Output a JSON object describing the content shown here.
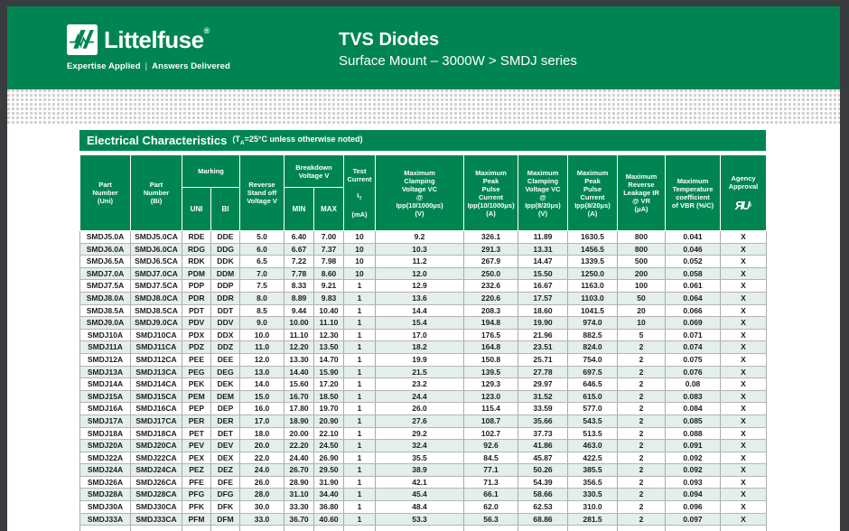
{
  "colors": {
    "accent_green": "#008552",
    "alt_row": "#e3efe8",
    "frame_bg": "#393c3f"
  },
  "brand": {
    "name": "Littelfuse",
    "reg": "®",
    "tagline_left": "Expertise Applied",
    "tagline_sep": "|",
    "tagline_right": "Answers Delivered"
  },
  "header": {
    "title": "TVS Diodes",
    "subtitle": "Surface Mount – 3000W  >  SMDJ series"
  },
  "section": {
    "title": "Electrical Characteristics",
    "note_prefix": "(T",
    "note_sub": "A",
    "note_suffix": "=25°C unless otherwise noted)"
  },
  "table": {
    "columns": {
      "part_uni": "Part\nNumber\n(Uni)",
      "part_bi": "Part\nNumber\n(Bi)",
      "marking": "Marking",
      "uni": "UNI",
      "bi": "BI",
      "reverse_standoff": "Reverse\nStand off\nVoltage V",
      "breakdown": "Breakdown\nVoltage V",
      "min": "MIN",
      "max": "MAX",
      "test_current": {
        "line1": "Test\nCurrent",
        "sym": "I",
        "sub": "T",
        "unit": "(mA)"
      },
      "clamping_10_1000": "Maximum\nClamping\nVoltage VC\n@\nIpp(10/1000μs)\n(V)",
      "peak_10_1000": "Maximum\nPeak\nPulse\nCurrent\nIpp(10/1000μs)\n(A)",
      "clamping_8_20": "Maximum\nClamping\nVoltage VC\n@\nIpp(8/20μs)\n(V)",
      "peak_8_20": "Maximum\nPeak\nPulse\nCurrent\nIpp(8/20μs)\n(A)",
      "reverse_leakage": "Maximum\nReverse\nLeakage IR\n@ VR\n(μA)",
      "temp_coeff": "Maximum\nTemperature\ncoefficient\nof VBR (%/C)",
      "agency": "Agency\nApproval",
      "agency_mark": "ЯU",
      "agency_mark_reg": "®"
    },
    "rows": [
      [
        "SMDJ5.0A",
        "SMDJ5.0CA",
        "RDE",
        "DDE",
        "5.0",
        "6.40",
        "7.00",
        "10",
        "9.2",
        "326.1",
        "11.89",
        "1630.5",
        "800",
        "0.041",
        "X"
      ],
      [
        "SMDJ6.0A",
        "SMDJ6.0CA",
        "RDG",
        "DDG",
        "6.0",
        "6.67",
        "7.37",
        "10",
        "10.3",
        "291.3",
        "13.31",
        "1456.5",
        "800",
        "0.046",
        "X"
      ],
      [
        "SMDJ6.5A",
        "SMDJ6.5CA",
        "RDK",
        "DDK",
        "6.5",
        "7.22",
        "7.98",
        "10",
        "11.2",
        "267.9",
        "14.47",
        "1339.5",
        "500",
        "0.052",
        "X"
      ],
      [
        "SMDJ7.0A",
        "SMDJ7.0CA",
        "PDM",
        "DDM",
        "7.0",
        "7.78",
        "8.60",
        "10",
        "12.0",
        "250.0",
        "15.50",
        "1250.0",
        "200",
        "0.058",
        "X"
      ],
      [
        "SMDJ7.5A",
        "SMDJ7.5CA",
        "PDP",
        "DDP",
        "7.5",
        "8.33",
        "9.21",
        "1",
        "12.9",
        "232.6",
        "16.67",
        "1163.0",
        "100",
        "0.061",
        "X"
      ],
      [
        "SMDJ8.0A",
        "SMDJ8.0CA",
        "PDR",
        "DDR",
        "8.0",
        "8.89",
        "9.83",
        "1",
        "13.6",
        "220.6",
        "17.57",
        "1103.0",
        "50",
        "0.064",
        "X"
      ],
      [
        "SMDJ8.5A",
        "SMDJ8.5CA",
        "PDT",
        "DDT",
        "8.5",
        "9.44",
        "10.40",
        "1",
        "14.4",
        "208.3",
        "18.60",
        "1041.5",
        "20",
        "0.066",
        "X"
      ],
      [
        "SMDJ9.0A",
        "SMDJ9.0CA",
        "PDV",
        "DDV",
        "9.0",
        "10.00",
        "11.10",
        "1",
        "15.4",
        "194.8",
        "19.90",
        "974.0",
        "10",
        "0.069",
        "X"
      ],
      [
        "SMDJ10A",
        "SMDJ10CA",
        "PDX",
        "DDX",
        "10.0",
        "11.10",
        "12.30",
        "1",
        "17.0",
        "176.5",
        "21.96",
        "882.5",
        "5",
        "0.071",
        "X"
      ],
      [
        "SMDJ11A",
        "SMDJ11CA",
        "PDZ",
        "DDZ",
        "11.0",
        "12.20",
        "13.50",
        "1",
        "18.2",
        "164.8",
        "23.51",
        "824.0",
        "2",
        "0.074",
        "X"
      ],
      [
        "SMDJ12A",
        "SMDJ12CA",
        "PEE",
        "DEE",
        "12.0",
        "13.30",
        "14.70",
        "1",
        "19.9",
        "150.8",
        "25.71",
        "754.0",
        "2",
        "0.075",
        "X"
      ],
      [
        "SMDJ13A",
        "SMDJ13CA",
        "PEG",
        "DEG",
        "13.0",
        "14.40",
        "15.90",
        "1",
        "21.5",
        "139.5",
        "27.78",
        "697.5",
        "2",
        "0.076",
        "X"
      ],
      [
        "SMDJ14A",
        "SMDJ14CA",
        "PEK",
        "DEK",
        "14.0",
        "15.60",
        "17.20",
        "1",
        "23.2",
        "129.3",
        "29.97",
        "646.5",
        "2",
        "0.08",
        "X"
      ],
      [
        "SMDJ15A",
        "SMDJ15CA",
        "PEM",
        "DEM",
        "15.0",
        "16.70",
        "18.50",
        "1",
        "24.4",
        "123.0",
        "31.52",
        "615.0",
        "2",
        "0.083",
        "X"
      ],
      [
        "SMDJ16A",
        "SMDJ16CA",
        "PEP",
        "DEP",
        "16.0",
        "17.80",
        "19.70",
        "1",
        "26.0",
        "115.4",
        "33.59",
        "577.0",
        "2",
        "0.084",
        "X"
      ],
      [
        "SMDJ17A",
        "SMDJ17CA",
        "PER",
        "DER",
        "17.0",
        "18.90",
        "20.90",
        "1",
        "27.6",
        "108.7",
        "35.66",
        "543.5",
        "2",
        "0.085",
        "X"
      ],
      [
        "SMDJ18A",
        "SMDJ18CA",
        "PET",
        "DET",
        "18.0",
        "20.00",
        "22.10",
        "1",
        "29.2",
        "102.7",
        "37.73",
        "513.5",
        "2",
        "0.088",
        "X"
      ],
      [
        "SMDJ20A",
        "SMDJ20CA",
        "PEV",
        "DEV",
        "20.0",
        "22.20",
        "24.50",
        "1",
        "32.4",
        "92.6",
        "41.86",
        "463.0",
        "2",
        "0.091",
        "X"
      ],
      [
        "SMDJ22A",
        "SMDJ22CA",
        "PEX",
        "DEX",
        "22.0",
        "24.40",
        "26.90",
        "1",
        "35.5",
        "84.5",
        "45.87",
        "422.5",
        "2",
        "0.092",
        "X"
      ],
      [
        "SMDJ24A",
        "SMDJ24CA",
        "PEZ",
        "DEZ",
        "24.0",
        "26.70",
        "29.50",
        "1",
        "38.9",
        "77.1",
        "50.26",
        "385.5",
        "2",
        "0.092",
        "X"
      ],
      [
        "SMDJ26A",
        "SMDJ26CA",
        "PFE",
        "DFE",
        "26.0",
        "28.90",
        "31.90",
        "1",
        "42.1",
        "71.3",
        "54.39",
        "356.5",
        "2",
        "0.093",
        "X"
      ],
      [
        "SMDJ28A",
        "SMDJ28CA",
        "PFG",
        "DFG",
        "28.0",
        "31.10",
        "34.40",
        "1",
        "45.4",
        "66.1",
        "58.66",
        "330.5",
        "2",
        "0.094",
        "X"
      ],
      [
        "SMDJ30A",
        "SMDJ30CA",
        "PFK",
        "DFK",
        "30.0",
        "33.30",
        "36.80",
        "1",
        "48.4",
        "62.0",
        "62.53",
        "310.0",
        "2",
        "0.096",
        "X"
      ],
      [
        "SMDJ33A",
        "SMDJ33CA",
        "PFM",
        "DFM",
        "33.0",
        "36.70",
        "40.60",
        "1",
        "53.3",
        "56.3",
        "68.86",
        "281.5",
        "2",
        "0.097",
        "X"
      ]
    ]
  }
}
